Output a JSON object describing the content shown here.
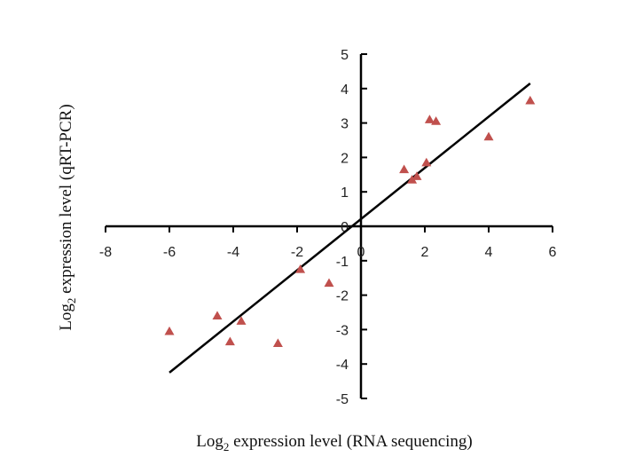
{
  "chart_data": {
    "type": "scatter",
    "xlabel_prefix": "Log",
    "xlabel_sub": "2",
    "xlabel_suffix": " expression level (RNA sequencing)",
    "ylabel_prefix": "Log",
    "ylabel_sub": "2",
    "ylabel_suffix": " expression level (qRT-PCR)",
    "xlim": [
      -8,
      6
    ],
    "ylim": [
      -5,
      5
    ],
    "x_ticks": [
      -8,
      -6,
      -4,
      -2,
      0,
      2,
      4,
      6
    ],
    "x_tick_labels": [
      "-8",
      "-6",
      "-4",
      "-2",
      "0",
      "2",
      "4",
      "6"
    ],
    "y_ticks": [
      -5,
      -4,
      -3,
      -2,
      -1,
      0,
      1,
      2,
      3,
      4,
      5
    ],
    "y_tick_labels": [
      "-5",
      "-4",
      "-3",
      "-2",
      "-1",
      "0",
      "1",
      "2",
      "3",
      "4",
      "5"
    ],
    "grid": false,
    "legend": "none",
    "marker": "triangle",
    "marker_color": "#c0504d",
    "line_color": "#000000",
    "series": [
      {
        "points": [
          {
            "x": -6.0,
            "y": -3.05
          },
          {
            "x": -4.5,
            "y": -2.6
          },
          {
            "x": -4.1,
            "y": -3.35
          },
          {
            "x": -3.75,
            "y": -2.75
          },
          {
            "x": -2.6,
            "y": -3.4
          },
          {
            "x": -1.9,
            "y": -1.25
          },
          {
            "x": -1.0,
            "y": -1.65
          },
          {
            "x": 1.35,
            "y": 1.65
          },
          {
            "x": 1.6,
            "y": 1.35
          },
          {
            "x": 1.75,
            "y": 1.45
          },
          {
            "x": 2.05,
            "y": 1.85
          },
          {
            "x": 2.15,
            "y": 3.1
          },
          {
            "x": 2.35,
            "y": 3.05
          },
          {
            "x": 4.0,
            "y": 2.6
          },
          {
            "x": 5.3,
            "y": 3.65
          }
        ]
      }
    ],
    "trendline": {
      "x": [
        -6.0,
        5.3
      ],
      "y": [
        -4.25,
        4.15
      ]
    }
  }
}
